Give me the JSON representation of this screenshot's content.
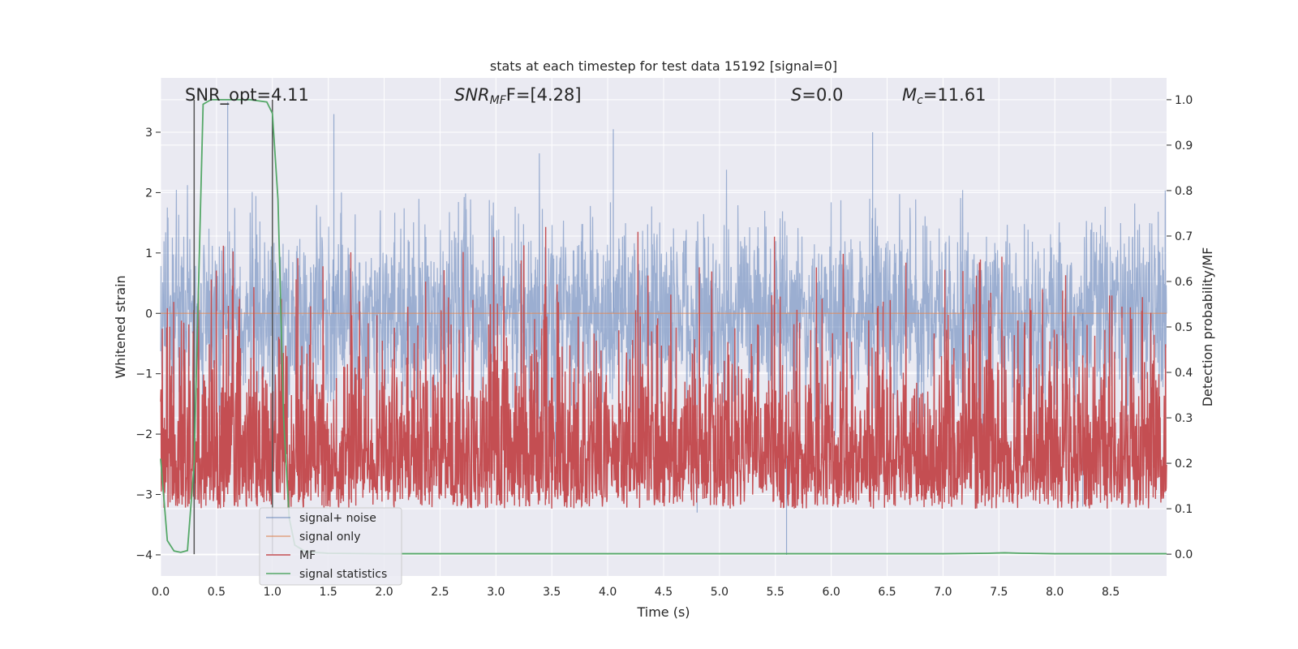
{
  "chart_data": {
    "type": "line",
    "title": "stats at each timestep for test data 15192 [signal=0]",
    "xlabel": "Time (s)",
    "ylabel": "Whitened strain",
    "y2label": "Detection probability/MF",
    "xlim": [
      0,
      9
    ],
    "ylim": [
      -4.35,
      3.9
    ],
    "y2lim": [
      -0.048,
      1.048
    ],
    "x_ticks": [
      0.0,
      0.5,
      1.0,
      1.5,
      2.0,
      2.5,
      3.0,
      3.5,
      4.0,
      4.5,
      5.0,
      5.5,
      6.0,
      6.5,
      7.0,
      7.5,
      8.0,
      8.5
    ],
    "x_tick_labels": [
      "0.0",
      "0.5",
      "1.0",
      "1.5",
      "2.0",
      "2.5",
      "3.0",
      "3.5",
      "4.0",
      "4.5",
      "5.0",
      "5.5",
      "6.0",
      "6.5",
      "7.0",
      "7.5",
      "8.0",
      "8.5"
    ],
    "y_ticks": [
      -4,
      -3,
      -2,
      -1,
      0,
      1,
      2,
      3
    ],
    "y_tick_labels": [
      "−4",
      "−3",
      "−2",
      "−1",
      "0",
      "1",
      "2",
      "3"
    ],
    "y2_ticks": [
      0.0,
      0.1,
      0.2,
      0.3,
      0.4,
      0.5,
      0.6,
      0.7,
      0.8,
      0.9,
      1.0
    ],
    "y2_tick_labels": [
      "0.0",
      "0.1",
      "0.2",
      "0.3",
      "0.4",
      "0.5",
      "0.6",
      "0.7",
      "0.8",
      "0.9",
      "1.0"
    ],
    "grid": true,
    "annotations": {
      "snr_opt": "SNR_opt=4.11",
      "snr_mf_main": "SNR",
      "snr_mf_sub": "MF",
      "snr_mf_rest": "F=[4.28]",
      "s_main": "S",
      "s_rest": "=0.0",
      "mc_main": "M",
      "mc_sub": "c",
      "mc_rest": "=11.61"
    },
    "vlines": [
      0.3,
      1.0
    ],
    "legend": {
      "placement": "lower-left",
      "entries": [
        "signal+ noise",
        "signal only",
        "MF",
        "signal statistics"
      ]
    },
    "series": [
      {
        "name": "signal+ noise",
        "color": "#4c72b0",
        "kind": "noise",
        "duration": 9,
        "std": 0.75,
        "clip": [
          -4,
          3.6
        ],
        "notable_peaks": [
          [
            0.6,
            3.5
          ],
          [
            1.55,
            3.3
          ],
          [
            4.05,
            3.05
          ],
          [
            6.37,
            3.0
          ],
          [
            5.6,
            -4.0
          ],
          [
            4.8,
            -3.3
          ],
          [
            8.25,
            -3.2
          ]
        ]
      },
      {
        "name": "signal only",
        "color": "#dd8452",
        "kind": "flat",
        "value": 0
      },
      {
        "name": "MF",
        "color": "#c44e52",
        "kind": "mf",
        "range": [
          0.0,
          0.72
        ],
        "typical": [
          0.03,
          0.5
        ],
        "duration": 9
      },
      {
        "name": "signal statistics",
        "color": "#55a868",
        "kind": "prob",
        "x": [
          0.0,
          0.06,
          0.12,
          0.18,
          0.24,
          0.3,
          0.33,
          0.38,
          0.45,
          0.6,
          0.8,
          0.95,
          1.0,
          1.05,
          1.1,
          1.15,
          1.2,
          1.3,
          1.5,
          2.0,
          3.0,
          4.0,
          5.0,
          6.0,
          7.0,
          7.4,
          7.55,
          7.7,
          8.0,
          9.0
        ],
        "y": [
          0.21,
          0.03,
          0.007,
          0.004,
          0.008,
          0.2,
          0.5,
          0.99,
          1.0,
          1.0,
          1.0,
          0.995,
          0.97,
          0.78,
          0.3,
          0.08,
          0.02,
          0.005,
          0.002,
          0.001,
          0.001,
          0.001,
          0.001,
          0.001,
          0.001,
          0.002,
          0.003,
          0.002,
          0.001,
          0.001
        ]
      }
    ]
  }
}
